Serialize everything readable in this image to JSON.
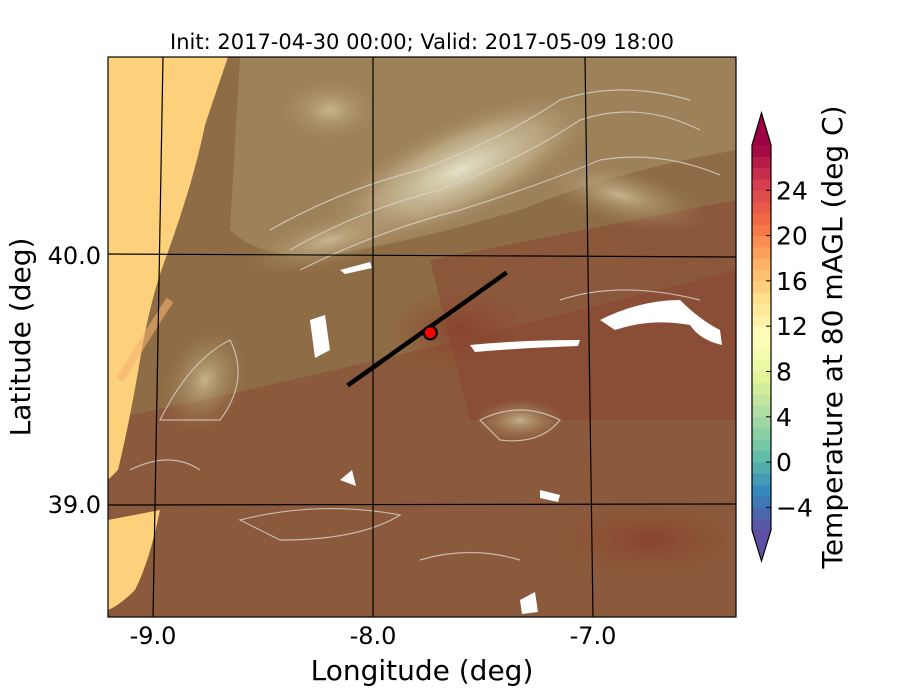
{
  "title": "Init: 2017-04-30 00:00; Valid: 2017-05-09 18:00",
  "map": {
    "xlabel": "Longitude (deg)",
    "ylabel": "Latitude (deg)",
    "x_ticks": [
      "-9.0",
      "-8.0",
      "-7.0"
    ],
    "y_ticks": [
      "40.0",
      "39.0"
    ],
    "transect": {
      "start": {
        "lon": -8.12,
        "lat": 39.48
      },
      "end": {
        "lon": -7.37,
        "lat": 39.93
      }
    },
    "marker": {
      "lon": -7.73,
      "lat": 39.69,
      "color": "#ff0000"
    },
    "ocean_color": "#fdd17c",
    "land_color": "#8e6c45"
  },
  "colorbar": {
    "label": "Temperature at 80 mAGL (deg C)",
    "min": -6,
    "max": 28,
    "ticks": [
      "24",
      "20",
      "16",
      "12",
      "8",
      "4",
      "0",
      "−4"
    ],
    "tick_values": [
      24,
      20,
      16,
      12,
      8,
      4,
      0,
      -4
    ],
    "extend": "both",
    "colormap": "Spectral_r"
  }
}
